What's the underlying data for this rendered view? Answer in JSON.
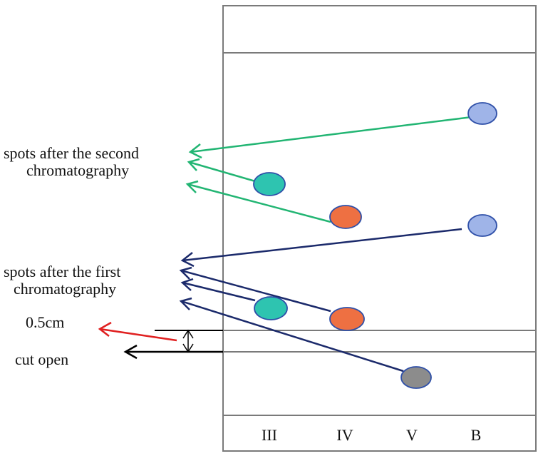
{
  "labels": {
    "second_line1": "spots after the second",
    "second_line2": "chromatography",
    "first_line1": "spots after the first",
    "first_line2": "chromatography",
    "distance": "0.5cm",
    "cut": "cut open"
  },
  "lanes": [
    "III",
    "IV",
    "V",
    "B"
  ],
  "colors": {
    "frame": "#7a7a7a",
    "green_arrow": "#22b573",
    "navy_arrow": "#1b2a6b",
    "red_arrow": "#e02020",
    "black_arrow": "#000000",
    "spot_teal": "#2ec4b0",
    "spot_orange": "#ee7042",
    "spot_blue": "#9fb4e8",
    "spot_gray": "#8c8c8c",
    "spot_outline": "#2e4fa8"
  },
  "spots": [
    {
      "name": "spot-b-second",
      "lane": "B",
      "round": "second",
      "color": "blue"
    },
    {
      "name": "spot-iii-second",
      "lane": "III",
      "round": "second",
      "color": "teal"
    },
    {
      "name": "spot-iv-second",
      "lane": "IV",
      "round": "second",
      "color": "orange"
    },
    {
      "name": "spot-b-first",
      "lane": "B",
      "round": "first",
      "color": "blue"
    },
    {
      "name": "spot-iii-first",
      "lane": "III",
      "round": "first",
      "color": "teal"
    },
    {
      "name": "spot-iv-first",
      "lane": "IV",
      "round": "first",
      "color": "orange"
    },
    {
      "name": "spot-v-origin",
      "lane": "V",
      "round": "origin",
      "color": "gray"
    }
  ]
}
